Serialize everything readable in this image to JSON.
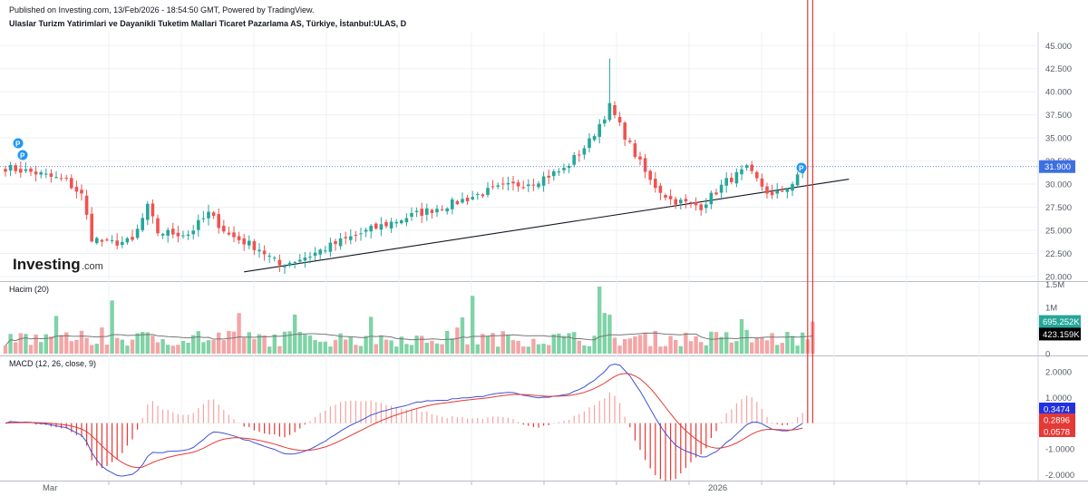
{
  "header": {
    "published": "Published on Investing.com, 13/Feb/2026 - 18:54:50 GMT, Powered by TradingView.",
    "symbol_title": "Ulaslar Turizm Yatirimlari ve Dayanikli Tuketim Mallari Ticaret Pazarlama AS, Türkiye, İstanbul:ULAS, D"
  },
  "logo": {
    "main": "Investing",
    "domain": ".com"
  },
  "colors": {
    "up": "#26a69a",
    "down": "#ef5350",
    "vol_up": "#7fd3a6",
    "vol_down": "#f4a5a5",
    "price_line": "#4a7be0",
    "macd_line": "#3f51d8",
    "signal_line": "#e53935",
    "trendline": "#131722",
    "vol_ma": "#777777"
  },
  "chart_data": [
    {
      "type": "candlestick",
      "pane": "price",
      "ylim": [
        19500,
        46500
      ],
      "yticks": [
        "45.000",
        "42.500",
        "40.000",
        "37.500",
        "35.000",
        "32.500",
        "30.000",
        "27.500",
        "25.000",
        "22.500",
        "20.000"
      ],
      "ytick_values": [
        45000,
        42500,
        40000,
        37500,
        35000,
        32500,
        30000,
        27500,
        25000,
        22500,
        20000
      ],
      "last_price_label": "31.900",
      "last_price": 31900,
      "markers": [
        "P",
        "P",
        "P"
      ],
      "trendline": {
        "from_index": 47,
        "from_price": 20500,
        "to_index": 159,
        "to_price": 29950
      },
      "seed_closes": [
        [
          0,
          31800
        ],
        [
          6,
          31200
        ],
        [
          12,
          30300
        ],
        [
          15,
          28800
        ],
        [
          17,
          24200
        ],
        [
          20,
          23600
        ],
        [
          25,
          23800
        ],
        [
          28,
          27500
        ],
        [
          30,
          24800
        ],
        [
          36,
          24600
        ],
        [
          40,
          26800
        ],
        [
          44,
          24500
        ],
        [
          50,
          23000
        ],
        [
          54,
          21200
        ],
        [
          60,
          22300
        ],
        [
          66,
          23800
        ],
        [
          72,
          25100
        ],
        [
          80,
          26600
        ],
        [
          88,
          27900
        ],
        [
          96,
          29400
        ],
        [
          104,
          30300
        ],
        [
          110,
          31600
        ],
        [
          115,
          34600
        ],
        [
          119,
          38400
        ],
        [
          123,
          34200
        ],
        [
          127,
          30300
        ],
        [
          131,
          28300
        ],
        [
          137,
          27600
        ],
        [
          142,
          30300
        ],
        [
          146,
          31600
        ],
        [
          151,
          28600
        ],
        [
          155,
          30100
        ],
        [
          158,
          31900
        ]
      ]
    },
    {
      "type": "bar",
      "pane": "volume",
      "title": "Hacim (20)",
      "ylim": [
        0,
        1550000
      ],
      "yticks": [
        "1.5M",
        "1M",
        "0"
      ],
      "ytick_values": [
        1500000,
        1000000,
        0
      ],
      "volume_label": "695.252K",
      "volume_value": 695252,
      "ma_label": "423.159K",
      "ma_value": 423159
    },
    {
      "type": "line",
      "pane": "macd",
      "title": "MACD (12, 26, close, 9)",
      "ylim": [
        -2.2,
        2.6
      ],
      "yticks": [
        "2.0000",
        "1.0000",
        "-1.0000",
        "-2.0000"
      ],
      "ytick_values": [
        2,
        1,
        -1,
        -2
      ],
      "macd_label": "0.3474",
      "macd_value": 0.3474,
      "signal_label": "0.2896",
      "signal_value": 0.2896,
      "hist_label": "0.0578",
      "hist_value": 0.0578
    }
  ],
  "x_axis": {
    "labels": [
      "Mar",
      "2026"
    ]
  }
}
